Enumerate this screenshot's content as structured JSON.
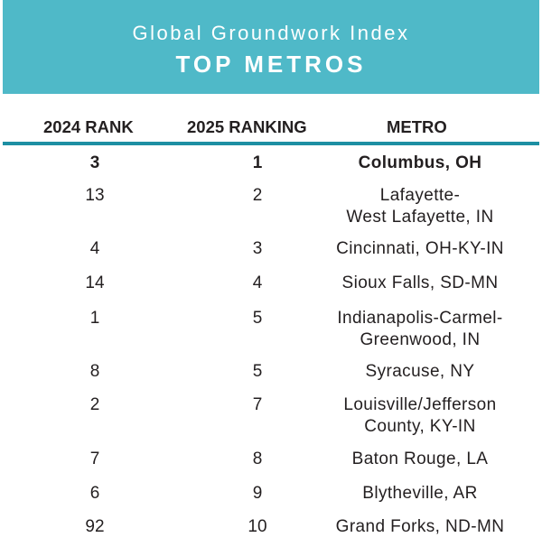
{
  "banner": {
    "subtitle": "Global Groundwork Index",
    "title": "TOP METROS",
    "background_color": "#4fb9c8"
  },
  "columns": {
    "rank_2024": "2024 RANK",
    "rank_2025": "2025 RANKING",
    "metro": "METRO"
  },
  "rule_color": "#1d8fa3",
  "rows": [
    {
      "rank_2024": "3",
      "rank_2025": "1",
      "metro_line1": "Columbus, OH",
      "metro_line2": ""
    },
    {
      "rank_2024": "13",
      "rank_2025": "2",
      "metro_line1": "Lafayette-",
      "metro_line2": "West Lafayette, IN"
    },
    {
      "rank_2024": "4",
      "rank_2025": "3",
      "metro_line1": "Cincinnati, OH-KY-IN",
      "metro_line2": ""
    },
    {
      "rank_2024": "14",
      "rank_2025": "4",
      "metro_line1": "Sioux Falls, SD-MN",
      "metro_line2": ""
    },
    {
      "rank_2024": "1",
      "rank_2025": "5",
      "metro_line1": "Indianapolis-Carmel-",
      "metro_line2": "Greenwood, IN"
    },
    {
      "rank_2024": "8",
      "rank_2025": "5",
      "metro_line1": "Syracuse, NY",
      "metro_line2": ""
    },
    {
      "rank_2024": "2",
      "rank_2025": "7",
      "metro_line1": "Louisville/Jefferson",
      "metro_line2": "County, KY-IN"
    },
    {
      "rank_2024": "7",
      "rank_2025": "8",
      "metro_line1": "Baton Rouge, LA",
      "metro_line2": ""
    },
    {
      "rank_2024": "6",
      "rank_2025": "9",
      "metro_line1": "Blytheville, AR",
      "metro_line2": ""
    },
    {
      "rank_2024": "92",
      "rank_2025": "10",
      "metro_line1": "Grand Forks, ND-MN",
      "metro_line2": ""
    }
  ]
}
